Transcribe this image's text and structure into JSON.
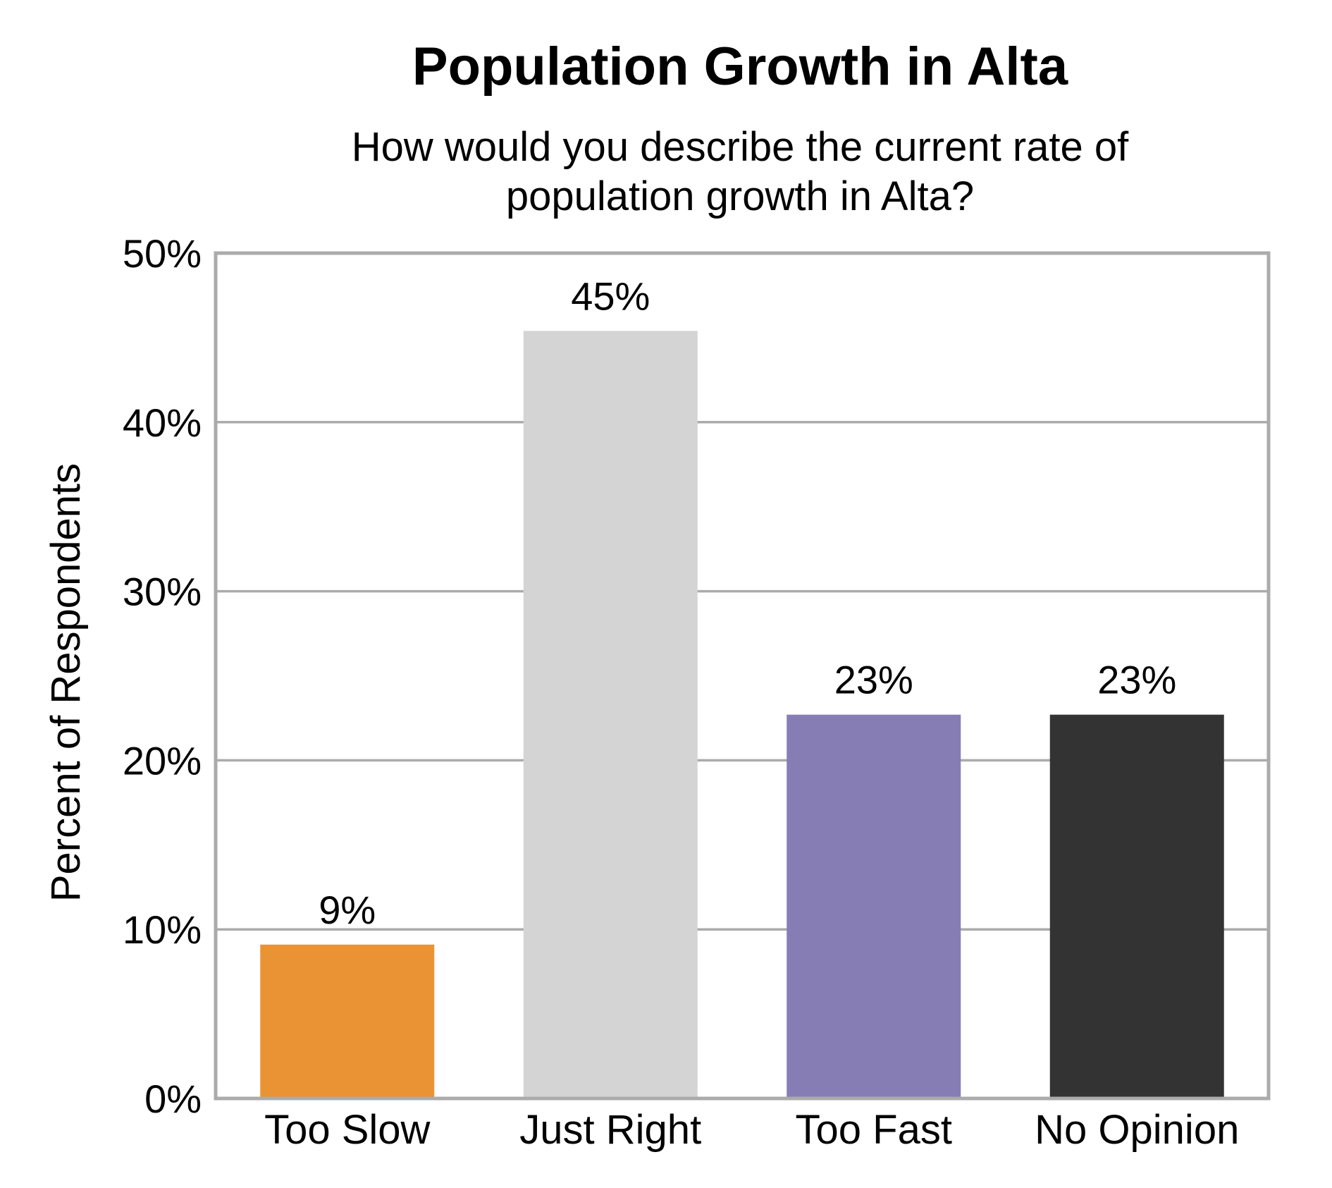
{
  "chart_data": {
    "type": "bar",
    "title": "Population Growth in Alta",
    "subtitle_lines": [
      "How would you describe the current rate of",
      "population growth in Alta?"
    ],
    "ylabel": "Percent of Respondents",
    "xlabel": "",
    "categories": [
      "Too Slow",
      "Just Right",
      "Too Fast",
      "No Opinion"
    ],
    "values": [
      9.1,
      45.4,
      22.7,
      22.7
    ],
    "value_labels": [
      "9%",
      "45%",
      "23%",
      "23%"
    ],
    "bar_colors": [
      "#EA9335",
      "#D4D4D4",
      "#877DB5",
      "#333333"
    ],
    "ylim": [
      0,
      50
    ],
    "yticks": [
      0,
      10,
      20,
      30,
      40,
      50
    ],
    "ytick_labels": [
      "0%",
      "10%",
      "20%",
      "30%",
      "40%",
      "50%"
    ],
    "grid": true,
    "legend": "none",
    "frame_color": "#ABABAB",
    "grid_color": "#ABABAB"
  }
}
